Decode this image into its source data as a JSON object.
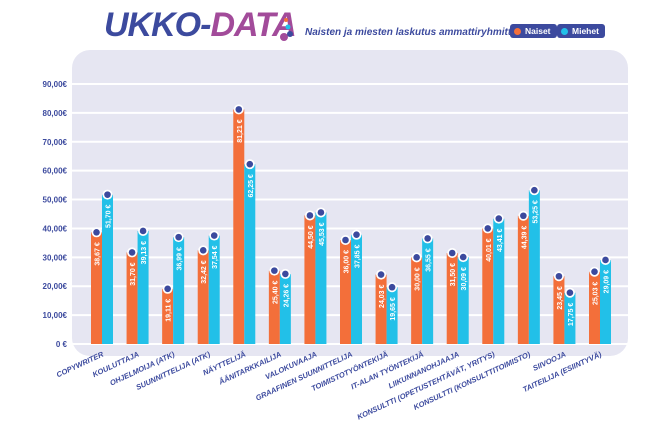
{
  "header": {
    "logo_part1": "UKKO-",
    "logo_part2": "DATA",
    "subtitle": "Naisten ja miesten laskutus ammattiryhmittäin."
  },
  "colors": {
    "naiset": "#f36f3a",
    "miehet": "#22c0e8",
    "dot": "#3c4a9e",
    "panel": "#e6e6f2",
    "text": "#3c4a9e"
  },
  "chart_data": {
    "type": "bar",
    "title": "Naisten ja miesten laskutus ammattiryhmittäin.",
    "ylim": [
      0,
      90
    ],
    "yticks": [
      "0 €",
      "10,00€",
      "20,00€",
      "30,00€",
      "40,00€",
      "50,00€",
      "60,00€",
      "70,00€",
      "80,00€",
      "90,00€"
    ],
    "legend": "top-right",
    "categories": [
      "COPYWRITER",
      "KOULUTTAJA",
      "OHJELMOIJA (ATK)",
      "SUUNNITTELIJA (ATK)",
      "NÄYTTELIJÄ",
      "ÄÄNITARKKAILIJA",
      "VALOKUVAAJA",
      "GRAAFINEN SUUNNITTELIJA",
      "TOIMISTOTYÖNTEKIJÄ",
      "IT-ALAN TYÖNTEKIJÄ",
      "LIIKUNNANOHJAAJA",
      "KONSULTTI (OPETUSTEHTÄVÄT, YRITYS)",
      "KONSULTTI (KONSULTTITOIMISTO)",
      "SIIVOOJA",
      "TAITEILIJA (ESIINTYVÄ)"
    ],
    "series": [
      {
        "name": "Naiset",
        "values": [
          38.67,
          31.7,
          19.11,
          32.42,
          81.21,
          25.4,
          44.5,
          36.0,
          24.03,
          30.0,
          31.5,
          40.01,
          44.39,
          23.45,
          25.03
        ],
        "labels": [
          "38,67 €",
          "31,70 €",
          "19,11 €",
          "32,42 €",
          "81,21 €",
          "25,40 €",
          "44,50 €",
          "36,00 €",
          "24,03 €",
          "30,00 €",
          "31,50 €",
          "40,01 €",
          "44,39 €",
          "23,45 €",
          "25,03 €"
        ]
      },
      {
        "name": "Miehet",
        "values": [
          51.7,
          39.13,
          36.99,
          37.54,
          62.25,
          24.26,
          45.53,
          37.85,
          19.65,
          36.55,
          30.09,
          43.41,
          53.25,
          17.75,
          29.09
        ],
        "labels": [
          "51,70 €",
          "39,13 €",
          "36,99 €",
          "37,54 €",
          "62,25 €",
          "24,26 €",
          "45,53 €",
          "37,85 €",
          "19,65 €",
          "36,55 €",
          "30,09 €",
          "43,41 €",
          "53,25 €",
          "17,75 €",
          "29,09 €"
        ]
      }
    ]
  }
}
